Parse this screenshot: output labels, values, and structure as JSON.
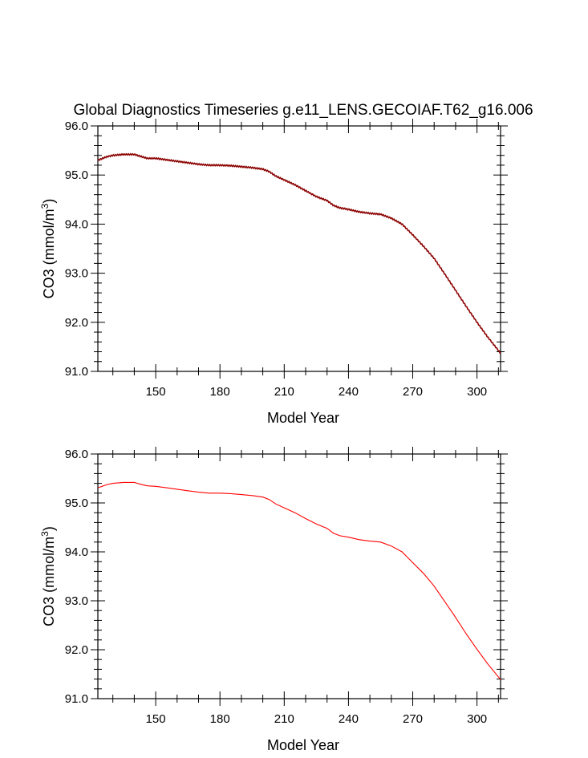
{
  "title": "Global Diagnostics Timeseries g.e11_LENS.GECOIAF.T62_g16.006",
  "chart_data": [
    {
      "type": "line",
      "title": "Global Diagnostics Timeseries g.e11_LENS.GECOIAF.T62_g16.006",
      "xlabel": "Model Year",
      "ylabel": "CO3 (mmol/m3)",
      "ylabel_main": "CO3 (mmol/m",
      "ylabel_sup": "3",
      "ylabel_end": ")",
      "xlim": [
        123,
        311
      ],
      "ylim": [
        91.0,
        96.0
      ],
      "x_ticks": [
        "150",
        "180",
        "210",
        "240",
        "270",
        "300"
      ],
      "y_ticks": [
        "91.0",
        "92.0",
        "93.0",
        "94.0",
        "95.0",
        "96.0"
      ],
      "grid": false,
      "series": [
        {
          "color": "#8b0000",
          "style": "monthly",
          "x": [
            123,
            127,
            130,
            135,
            140,
            143,
            146,
            150,
            155,
            160,
            165,
            170,
            175,
            180,
            185,
            190,
            195,
            200,
            203,
            206,
            210,
            215,
            220,
            225,
            230,
            233,
            236,
            240,
            245,
            250,
            255,
            260,
            265,
            270,
            275,
            280,
            285,
            290,
            295,
            300,
            305,
            311
          ],
          "y": [
            95.3,
            95.37,
            95.4,
            95.42,
            95.42,
            95.38,
            95.34,
            95.34,
            95.31,
            95.28,
            95.25,
            95.22,
            95.2,
            95.2,
            95.19,
            95.17,
            95.15,
            95.12,
            95.07,
            94.98,
            94.9,
            94.8,
            94.68,
            94.56,
            94.48,
            94.38,
            94.33,
            94.3,
            94.25,
            94.22,
            94.2,
            94.12,
            94.0,
            93.78,
            93.55,
            93.3,
            92.98,
            92.65,
            92.32,
            92.0,
            91.7,
            91.37
          ]
        }
      ]
    },
    {
      "type": "line",
      "title": "",
      "xlabel": "Model Year",
      "ylabel": "CO3 (mmol/m3)",
      "ylabel_main": "CO3 (mmol/m",
      "ylabel_sup": "3",
      "ylabel_end": ")",
      "xlim": [
        123,
        311
      ],
      "ylim": [
        91.0,
        96.0
      ],
      "x_ticks": [
        "150",
        "180",
        "210",
        "240",
        "270",
        "300"
      ],
      "y_ticks": [
        "91.0",
        "92.0",
        "93.0",
        "94.0",
        "95.0",
        "96.0"
      ],
      "grid": false,
      "series": [
        {
          "color": "#ff0000",
          "style": "annual",
          "x": [
            123,
            127,
            130,
            135,
            140,
            143,
            146,
            150,
            155,
            160,
            165,
            170,
            175,
            180,
            185,
            190,
            195,
            200,
            203,
            206,
            210,
            215,
            220,
            225,
            230,
            233,
            236,
            240,
            245,
            250,
            255,
            260,
            265,
            270,
            275,
            280,
            285,
            290,
            295,
            300,
            305,
            311
          ],
          "y": [
            95.31,
            95.37,
            95.4,
            95.42,
            95.42,
            95.38,
            95.35,
            95.34,
            95.31,
            95.28,
            95.25,
            95.22,
            95.2,
            95.2,
            95.19,
            95.17,
            95.15,
            95.12,
            95.07,
            94.98,
            94.9,
            94.8,
            94.68,
            94.57,
            94.48,
            94.38,
            94.33,
            94.3,
            94.25,
            94.22,
            94.2,
            94.12,
            94.0,
            93.78,
            93.56,
            93.3,
            92.98,
            92.66,
            92.32,
            92.01,
            91.71,
            91.39
          ]
        }
      ]
    }
  ]
}
